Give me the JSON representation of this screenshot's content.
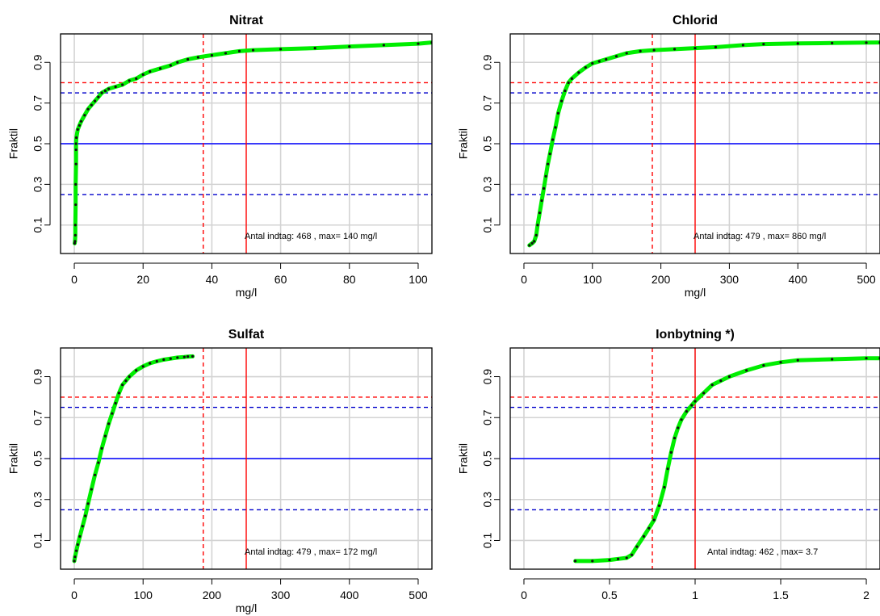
{
  "figure": {
    "panels": [
      {
        "title": "Nitrat",
        "xlabel": "mg/l",
        "ylabel": "Fraktil",
        "annotation": "Antal indtag: 468 , max= 140 mg/l",
        "xticks": [
          "0",
          "20",
          "40",
          "60",
          "80",
          "100"
        ],
        "yticks": [
          "0.1",
          "0.3",
          "0.5",
          "0.7",
          "0.9"
        ]
      },
      {
        "title": "Chlorid",
        "xlabel": "mg/l",
        "ylabel": "Fraktil",
        "annotation": "Antal indtag: 479 , max= 860 mg/l",
        "xticks": [
          "0",
          "100",
          "200",
          "300",
          "400",
          "500"
        ],
        "yticks": [
          "0.1",
          "0.3",
          "0.5",
          "0.7",
          "0.9"
        ]
      },
      {
        "title": "Sulfat",
        "xlabel": "mg/l",
        "ylabel": "Fraktil",
        "annotation": "Antal indtag: 479 , max= 172 mg/l",
        "xticks": [
          "0",
          "100",
          "200",
          "300",
          "400",
          "500"
        ],
        "yticks": [
          "0.1",
          "0.3",
          "0.5",
          "0.7",
          "0.9"
        ]
      },
      {
        "title": "Ionbytning *)",
        "xlabel": "",
        "ylabel": "Fraktil",
        "annotation": "Antal indtag: 462 , max= 3.7",
        "xticks": [
          "0",
          "0.5",
          "1",
          "1.5",
          "2"
        ],
        "yticks": [
          "0.1",
          "0.3",
          "0.5",
          "0.7",
          "0.9"
        ]
      }
    ]
  },
  "chart_data": [
    {
      "type": "line",
      "title": "Nitrat",
      "xlabel": "mg/l",
      "ylabel": "Fraktil",
      "xlim": [
        -4,
        104
      ],
      "ylim": [
        -0.04,
        1.04
      ],
      "grid": true,
      "x_ticks": [
        0,
        20,
        40,
        60,
        80,
        100
      ],
      "y_ticks": [
        0.1,
        0.3,
        0.5,
        0.7,
        0.9
      ],
      "reference_lines": {
        "horizontal": [
          {
            "y": 0.25,
            "color": "#0000cc",
            "style": "dashed"
          },
          {
            "y": 0.5,
            "color": "#0000ff",
            "style": "solid"
          },
          {
            "y": 0.75,
            "color": "#0000cc",
            "style": "dashed"
          },
          {
            "y": 0.8,
            "color": "#ff0000",
            "style": "dashed"
          }
        ],
        "vertical": [
          {
            "x": 37.5,
            "color": "#ff0000",
            "style": "dashed"
          },
          {
            "x": 50,
            "color": "#ff0000",
            "style": "solid"
          }
        ]
      },
      "series": [
        {
          "x": [
            0.1,
            0.2,
            0.3,
            0.3,
            0.4,
            0.4,
            0.5,
            0.5,
            0.5,
            0.6,
            1,
            1.5,
            2,
            3,
            4,
            5,
            6,
            7,
            8,
            9,
            10,
            12,
            14,
            16,
            18,
            20,
            22,
            25,
            28,
            30,
            33,
            36,
            40,
            44,
            48,
            52,
            60,
            70,
            80,
            90,
            100,
            104
          ],
          "y": [
            0.01,
            0.02,
            0.05,
            0.1,
            0.2,
            0.3,
            0.4,
            0.47,
            0.5,
            0.53,
            0.57,
            0.59,
            0.61,
            0.64,
            0.67,
            0.69,
            0.71,
            0.73,
            0.75,
            0.76,
            0.77,
            0.78,
            0.79,
            0.81,
            0.82,
            0.84,
            0.855,
            0.87,
            0.885,
            0.9,
            0.915,
            0.925,
            0.935,
            0.945,
            0.955,
            0.96,
            0.965,
            0.97,
            0.978,
            0.985,
            0.992,
            0.998
          ]
        }
      ]
    },
    {
      "type": "line",
      "title": "Chlorid",
      "xlabel": "mg/l",
      "ylabel": "Fraktil",
      "xlim": [
        -20,
        520
      ],
      "ylim": [
        -0.04,
        1.04
      ],
      "grid": true,
      "x_ticks": [
        0,
        100,
        200,
        300,
        400,
        500
      ],
      "y_ticks": [
        0.1,
        0.3,
        0.5,
        0.7,
        0.9
      ],
      "reference_lines": {
        "horizontal": [
          {
            "y": 0.25,
            "color": "#0000cc",
            "style": "dashed"
          },
          {
            "y": 0.5,
            "color": "#0000ff",
            "style": "solid"
          },
          {
            "y": 0.75,
            "color": "#0000cc",
            "style": "dashed"
          },
          {
            "y": 0.8,
            "color": "#ff0000",
            "style": "dashed"
          }
        ],
        "vertical": [
          {
            "x": 187.5,
            "color": "#ff0000",
            "style": "dashed"
          },
          {
            "x": 250,
            "color": "#ff0000",
            "style": "solid"
          }
        ]
      },
      "series": [
        {
          "x": [
            8,
            12,
            15,
            18,
            20,
            23,
            26,
            29,
            32,
            35,
            38,
            42,
            46,
            50,
            55,
            60,
            65,
            70,
            80,
            90,
            100,
            110,
            120,
            135,
            150,
            170,
            190,
            220,
            250,
            280,
            320,
            350,
            400,
            450,
            500,
            520
          ],
          "y": [
            0.0,
            0.01,
            0.02,
            0.05,
            0.1,
            0.16,
            0.22,
            0.28,
            0.34,
            0.4,
            0.45,
            0.52,
            0.58,
            0.65,
            0.71,
            0.76,
            0.8,
            0.82,
            0.85,
            0.875,
            0.895,
            0.905,
            0.915,
            0.93,
            0.945,
            0.955,
            0.96,
            0.965,
            0.97,
            0.975,
            0.985,
            0.99,
            0.993,
            0.995,
            0.997,
            0.998
          ]
        }
      ]
    },
    {
      "type": "line",
      "title": "Sulfat",
      "xlabel": "mg/l",
      "ylabel": "Fraktil",
      "xlim": [
        -20,
        520
      ],
      "ylim": [
        -0.04,
        1.04
      ],
      "grid": true,
      "x_ticks": [
        0,
        100,
        200,
        300,
        400,
        500
      ],
      "y_ticks": [
        0.1,
        0.3,
        0.5,
        0.7,
        0.9
      ],
      "reference_lines": {
        "horizontal": [
          {
            "y": 0.25,
            "color": "#0000cc",
            "style": "dashed"
          },
          {
            "y": 0.5,
            "color": "#0000ff",
            "style": "solid"
          },
          {
            "y": 0.75,
            "color": "#0000cc",
            "style": "dashed"
          },
          {
            "y": 0.8,
            "color": "#ff0000",
            "style": "dashed"
          }
        ],
        "vertical": [
          {
            "x": 187.5,
            "color": "#ff0000",
            "style": "dashed"
          },
          {
            "x": 250,
            "color": "#ff0000",
            "style": "solid"
          }
        ]
      },
      "series": [
        {
          "x": [
            0,
            1,
            3,
            5,
            8,
            12,
            16,
            20,
            25,
            30,
            35,
            40,
            45,
            50,
            55,
            60,
            65,
            70,
            75,
            80,
            90,
            100,
            110,
            120,
            130,
            140,
            150,
            160,
            165,
            172
          ],
          "y": [
            0.0,
            0.02,
            0.05,
            0.08,
            0.12,
            0.17,
            0.22,
            0.28,
            0.35,
            0.42,
            0.48,
            0.55,
            0.61,
            0.67,
            0.72,
            0.77,
            0.82,
            0.86,
            0.88,
            0.9,
            0.93,
            0.95,
            0.965,
            0.975,
            0.983,
            0.988,
            0.993,
            0.996,
            0.998,
            0.999
          ]
        }
      ]
    },
    {
      "type": "line",
      "title": "Ionbytning *)",
      "xlabel": "",
      "ylabel": "Fraktil",
      "xlim": [
        -0.08,
        2.08
      ],
      "ylim": [
        -0.04,
        1.04
      ],
      "grid": true,
      "x_ticks": [
        0,
        0.5,
        1,
        1.5,
        2
      ],
      "y_ticks": [
        0.1,
        0.3,
        0.5,
        0.7,
        0.9
      ],
      "reference_lines": {
        "horizontal": [
          {
            "y": 0.25,
            "color": "#0000cc",
            "style": "dashed"
          },
          {
            "y": 0.5,
            "color": "#0000ff",
            "style": "solid"
          },
          {
            "y": 0.75,
            "color": "#0000cc",
            "style": "dashed"
          },
          {
            "y": 0.8,
            "color": "#ff0000",
            "style": "dashed"
          }
        ],
        "vertical": [
          {
            "x": 0.75,
            "color": "#ff0000",
            "style": "dashed"
          },
          {
            "x": 1.0,
            "color": "#ff0000",
            "style": "solid"
          }
        ]
      },
      "series": [
        {
          "x": [
            0.3,
            0.4,
            0.5,
            0.55,
            0.6,
            0.63,
            0.66,
            0.7,
            0.73,
            0.76,
            0.79,
            0.82,
            0.84,
            0.86,
            0.88,
            0.9,
            0.92,
            0.95,
            0.98,
            1.0,
            1.05,
            1.1,
            1.15,
            1.2,
            1.3,
            1.4,
            1.5,
            1.6,
            1.8,
            2.0,
            2.08
          ],
          "y": [
            0.0,
            0.0,
            0.005,
            0.01,
            0.015,
            0.03,
            0.07,
            0.12,
            0.16,
            0.2,
            0.27,
            0.36,
            0.45,
            0.53,
            0.6,
            0.65,
            0.69,
            0.73,
            0.76,
            0.78,
            0.82,
            0.86,
            0.88,
            0.9,
            0.93,
            0.955,
            0.97,
            0.98,
            0.985,
            0.99,
            0.99
          ]
        }
      ]
    }
  ]
}
